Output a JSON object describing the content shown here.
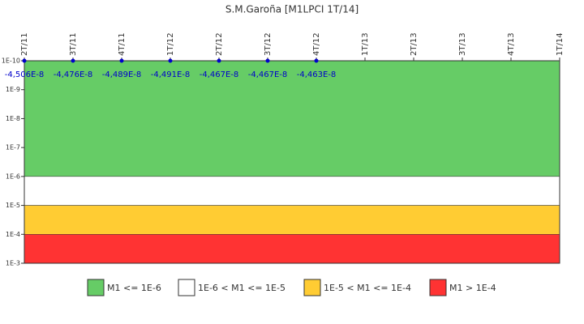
{
  "chart_data": {
    "type": "line",
    "title": "S.M.Garoña [M1LPCI 1T/14]",
    "categories": [
      "2T/11",
      "3T/11",
      "4T/11",
      "1T/12",
      "2T/12",
      "3T/12",
      "4T/12",
      "1T/13",
      "2T/13",
      "3T/13",
      "4T/13",
      "1T/14"
    ],
    "series": [
      {
        "name": "M1LPCI",
        "color": "#0000cc",
        "values": [
          -4.506e-08,
          -4.476e-08,
          -4.489e-08,
          -4.491e-08,
          -4.467e-08,
          -4.467e-08,
          -4.463e-08,
          null,
          null,
          null,
          null,
          null
        ],
        "value_labels": [
          "-4,506E-8",
          "-4,476E-8",
          "-4,489E-8",
          "-4,491E-8",
          "-4,467E-8",
          "-4,467E-8",
          "-4,463E-8",
          null,
          null,
          null,
          null,
          null
        ]
      }
    ],
    "log_scale": true,
    "y_inverted": true,
    "ylim": [
      1e-10,
      0.001
    ],
    "yticks": [
      {
        "value": 1e-10,
        "label": "1E-10"
      },
      {
        "value": 1e-09,
        "label": "1E-9"
      },
      {
        "value": 1e-08,
        "label": "1E-8"
      },
      {
        "value": 1e-07,
        "label": "1E-7"
      },
      {
        "value": 1e-06,
        "label": "1E-6"
      },
      {
        "value": 1e-05,
        "label": "1E-5"
      },
      {
        "value": 0.0001,
        "label": "1E-4"
      },
      {
        "value": 0.001,
        "label": "1E-3"
      }
    ],
    "bands": [
      {
        "name": "M1 <= 1E-6",
        "color": "#66cc66",
        "from": 1e-10,
        "to": 1e-06
      },
      {
        "name": "1E-6 < M1 <= 1E-5",
        "color": "#ffffff",
        "from": 1e-06,
        "to": 1e-05
      },
      {
        "name": "1E-5 < M1 <= 1E-4",
        "color": "#ffcc33",
        "from": 1e-05,
        "to": 0.0001
      },
      {
        "name": "M1 > 1E-4",
        "color": "#ff3333",
        "from": 0.0001,
        "to": 0.001
      }
    ]
  }
}
